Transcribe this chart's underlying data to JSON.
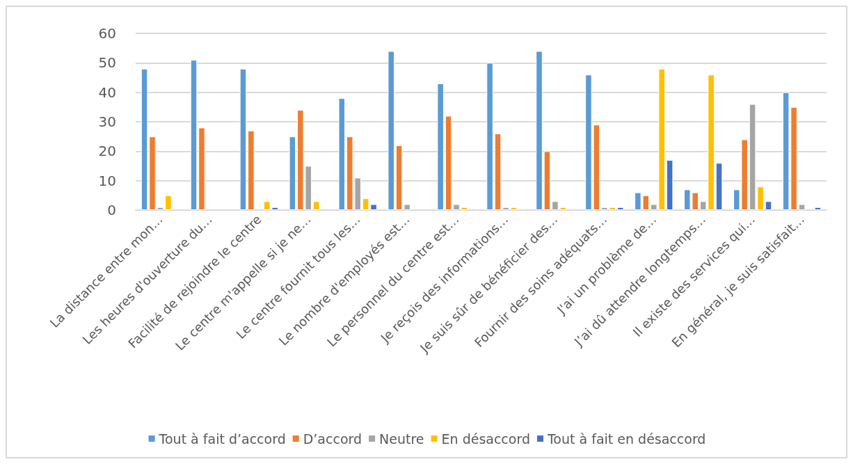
{
  "chart_data": {
    "type": "bar",
    "categories": [
      "La distance entre mon…",
      "Les heures d'ouverture du…",
      "Facilité de rejoindre le centre",
      "Le centre m'appelle si je ne…",
      "Le centre fournit tous les…",
      "Le nombre d'employés est…",
      "Le personnel du centre est…",
      "Je reçois des informations…",
      "Je suis sûr de bénéficier des…",
      "Fournir des soins adéquats…",
      "J'ai un problème de…",
      "J’ai dû attendre longtemps…",
      "Il existe des services qui…",
      "En général, je suis satisfait…"
    ],
    "series": [
      {
        "name": "Tout à fait d’accord",
        "color": "#5b9bd5",
        "values": [
          48,
          51,
          48,
          25,
          38,
          54,
          43,
          50,
          54,
          46,
          6,
          7,
          7,
          40
        ]
      },
      {
        "name": "D’accord",
        "color": "#ed7d31",
        "values": [
          25,
          28,
          27,
          34,
          25,
          22,
          32,
          26,
          20,
          29,
          5,
          6,
          24,
          35
        ]
      },
      {
        "name": "Neutre",
        "color": "#a5a5a5",
        "values": [
          1,
          null,
          null,
          15,
          11,
          2,
          2,
          1,
          3,
          1,
          2,
          3,
          36,
          2
        ]
      },
      {
        "name": "En désaccord",
        "color": "#ffc000",
        "values": [
          5,
          null,
          3,
          3,
          4,
          null,
          1,
          1,
          1,
          1,
          48,
          46,
          8,
          null
        ]
      },
      {
        "name": "Tout à fait en désaccord",
        "color": "#4472c4",
        "values": [
          null,
          null,
          1,
          null,
          2,
          null,
          null,
          null,
          null,
          1,
          17,
          16,
          3,
          1
        ]
      }
    ],
    "ylim": [
      0,
      60
    ],
    "yticks": [
      0,
      10,
      20,
      30,
      40,
      50,
      60
    ],
    "grid": "y",
    "legend": "bottom"
  }
}
